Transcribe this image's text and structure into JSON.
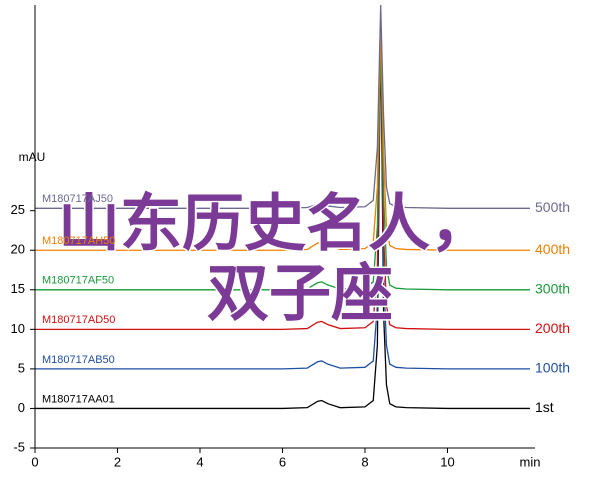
{
  "chart_data": {
    "type": "line",
    "xlabel": "min",
    "ylabel": "mAU",
    "xlim": [
      0,
      12
    ],
    "ylim": [
      -5,
      51
    ],
    "xticks": [
      0,
      2,
      4,
      6,
      8,
      10
    ],
    "yticks": [
      -5,
      0,
      5,
      10,
      15,
      20,
      25
    ],
    "annotations": [
      "山东历史名人，",
      "双子座"
    ],
    "x": [
      0,
      2,
      4,
      6,
      6.6,
      6.85,
      6.95,
      7.1,
      7.4,
      8,
      8.2,
      8.3,
      8.38,
      8.45,
      8.52,
      8.6,
      8.75,
      9,
      10,
      12
    ],
    "series": [
      {
        "name": "M180717AA01",
        "label": "1st",
        "color": "#000000",
        "values": [
          0,
          0,
          0,
          0,
          0.1,
          0.9,
          1,
          0.6,
          0.1,
          0.2,
          1,
          8,
          48,
          12,
          3,
          0.6,
          0.2,
          0.1,
          0,
          0
        ]
      },
      {
        "name": "M180717AB50",
        "label": "100th",
        "color": "#1f4fa0",
        "values": [
          5,
          5,
          5,
          5,
          5.1,
          5.9,
          6,
          5.6,
          5.1,
          5.2,
          6,
          13,
          49,
          17,
          8,
          5.6,
          5.2,
          5.1,
          5,
          5
        ]
      },
      {
        "name": "M180717AD50",
        "label": "200th",
        "color": "#d01010",
        "values": [
          10,
          10,
          10,
          10,
          10.1,
          10.9,
          11,
          10.6,
          10.1,
          10.2,
          11,
          18,
          48,
          22,
          13,
          10.6,
          10.2,
          10.1,
          10,
          10
        ]
      },
      {
        "name": "M180717AF50",
        "label": "300th",
        "color": "#1a9a3a",
        "values": [
          15,
          15,
          15,
          15,
          15.1,
          15.9,
          16,
          15.6,
          15.1,
          15.2,
          16,
          23,
          47,
          27,
          18,
          15.6,
          15.2,
          15.1,
          15,
          15
        ]
      },
      {
        "name": "M180717AH50",
        "label": "400th",
        "color": "#f08000",
        "values": [
          20,
          20,
          20,
          20,
          20.1,
          20.9,
          21,
          20.6,
          20.1,
          20.2,
          21,
          28,
          49,
          32,
          23,
          20.6,
          20.2,
          20.1,
          20,
          20
        ]
      },
      {
        "name": "M180717AJ50",
        "label": "500th",
        "color": "#6a6a90",
        "values": [
          25.3,
          25.3,
          25.3,
          25.3,
          25.4,
          25.8,
          25.9,
          25.6,
          25.4,
          25.5,
          26.3,
          33,
          51,
          37,
          28,
          25.9,
          25.5,
          25.4,
          25.3,
          25.3
        ]
      }
    ]
  }
}
